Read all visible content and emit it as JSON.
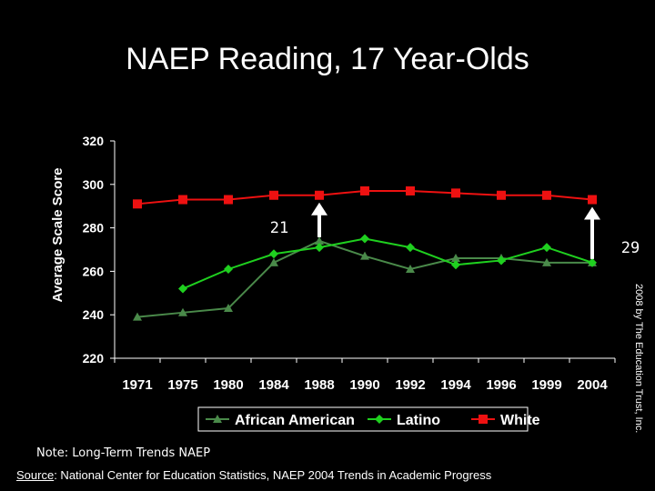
{
  "slide": {
    "title": "NAEP Reading, 17 Year-Olds",
    "note": "Note: Long-Term Trends NAEP",
    "source_label": "Source",
    "source_text": ": National Center for Education Statistics, NAEP 2004 Trends in Academic Progress",
    "copyright": "2008 by The Education Trust, Inc."
  },
  "chart_data": {
    "type": "line",
    "title": "NAEP Reading, 17 Year-Olds",
    "xlabel": "",
    "ylabel": "Average Scale Score",
    "categories": [
      "1971",
      "1975",
      "1980",
      "1984",
      "1988",
      "1990",
      "1992",
      "1994",
      "1996",
      "1999",
      "2004"
    ],
    "ylim": [
      220,
      320
    ],
    "yticks": [
      220,
      240,
      260,
      280,
      300,
      320
    ],
    "grid": false,
    "legend_position": "bottom",
    "series": [
      {
        "name": "African American",
        "color": "#4a8a4a",
        "marker": "triangle",
        "values": [
          239,
          241,
          243,
          264,
          274,
          267,
          261,
          266,
          266,
          264,
          264
        ]
      },
      {
        "name": "Latino",
        "color": "#1fd01f",
        "marker": "diamond",
        "values": [
          null,
          252,
          261,
          268,
          271,
          275,
          271,
          263,
          265,
          271,
          264
        ]
      },
      {
        "name": "White",
        "color": "#ee1111",
        "marker": "square",
        "values": [
          291,
          293,
          293,
          295,
          295,
          297,
          297,
          296,
          295,
          295,
          293
        ]
      }
    ],
    "annotations": [
      {
        "text": "21",
        "category": "1988",
        "from": 274,
        "to": 295
      },
      {
        "text": "29",
        "category": "2004",
        "from": 264,
        "to": 293
      }
    ]
  }
}
